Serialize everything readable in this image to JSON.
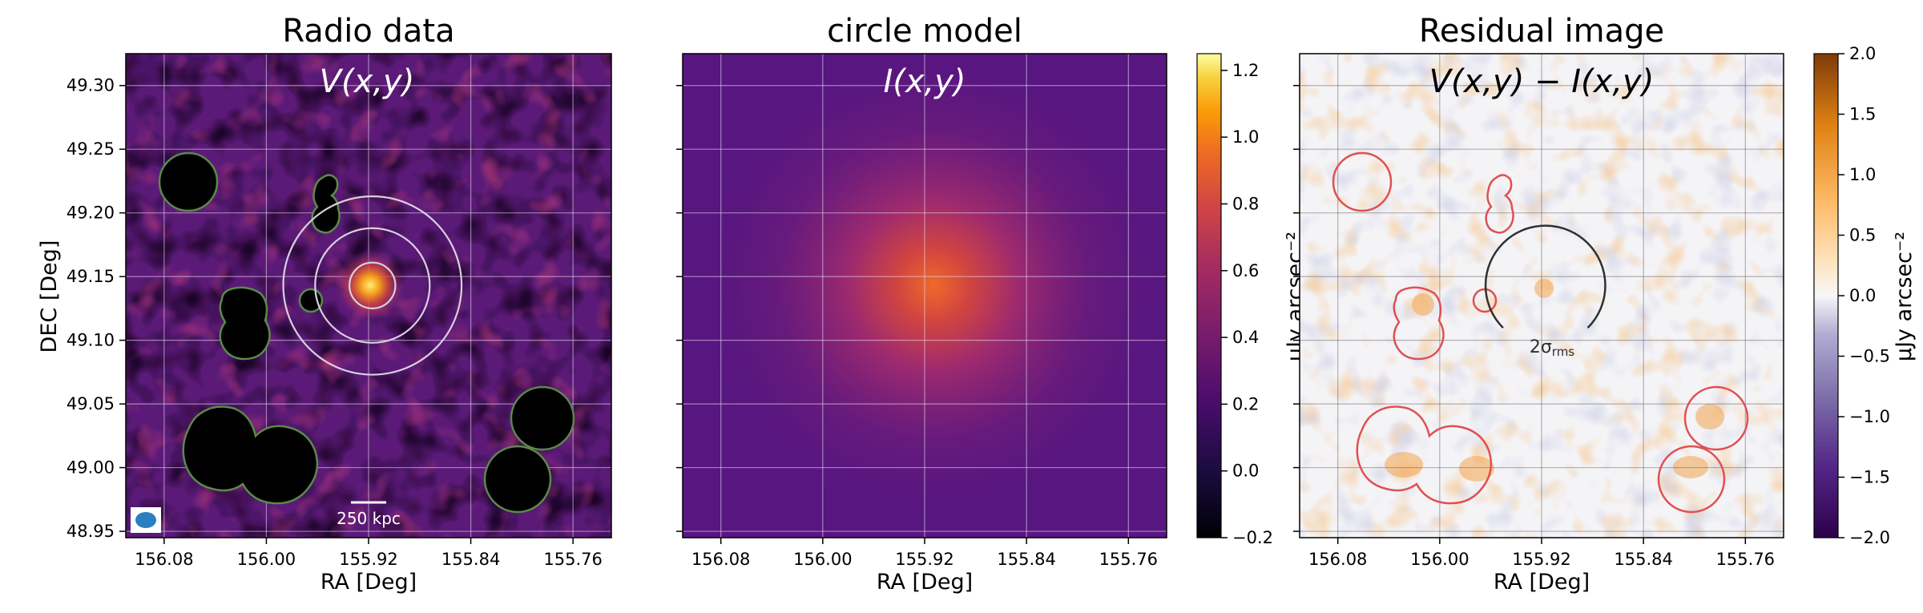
{
  "figure": {
    "panels": [
      {
        "title": "Radio data",
        "formula": "V(x,y)",
        "xlabel": "RA [Deg]",
        "ylabel": "DEC [Deg]"
      },
      {
        "title": "circle model",
        "formula": "I(x,y)",
        "xlabel": "RA [Deg]"
      },
      {
        "title": "Residual image",
        "formula": "V(x,y) − I(x,y)",
        "xlabel": "RA [Deg]"
      }
    ],
    "scalebar_label": "250 kpc",
    "sigma_label": "2σ",
    "sigma_subscript": "rms",
    "colorbar_label_model": "μJy arcsec⁻²",
    "colorbar_label_residual": "μJy arcsec⁻²",
    "colors": {
      "mask_outline_radio": "#5a8a4a",
      "mask_outline_residual": "#e05050",
      "rings": "#d8d0e0",
      "beam": "#2a7fc0",
      "sigma_circle": "#303030"
    }
  },
  "chart_data": [
    {
      "type": "heatmap",
      "name_hint": "radio",
      "xlim": [
        156.11,
        155.73
      ],
      "ylim": [
        48.945,
        49.325
      ],
      "x_ticks": [
        "156.08",
        "156.00",
        "155.92",
        "155.84",
        "155.76"
      ],
      "x_tick_values": [
        156.08,
        156.0,
        155.92,
        155.84,
        155.76
      ],
      "y_ticks": [
        "49.30",
        "49.25",
        "49.20",
        "49.15",
        "49.10",
        "49.05",
        "49.00",
        "48.95"
      ],
      "y_tick_values": [
        49.3,
        49.25,
        49.2,
        49.15,
        49.1,
        49.05,
        49.0,
        48.95
      ],
      "center": {
        "ra": 155.917,
        "dec": 49.143
      },
      "ring_radii_deg": [
        0.018,
        0.045,
        0.07
      ],
      "grid": true
    },
    {
      "type": "heatmap",
      "name_hint": "model",
      "xlim": [
        156.11,
        155.73
      ],
      "ylim": [
        48.945,
        49.325
      ],
      "x_ticks": [
        "156.08",
        "156.00",
        "155.92",
        "155.84",
        "155.76"
      ],
      "x_tick_values": [
        156.08,
        156.0,
        155.92,
        155.84,
        155.76
      ],
      "center": {
        "ra": 155.917,
        "dec": 49.143
      },
      "colorbar": {
        "min": -0.2,
        "max": 1.25,
        "ticks": [
          "1.2",
          "1.0",
          "0.8",
          "0.6",
          "0.4",
          "0.2",
          "0.0",
          "−0.2"
        ],
        "tick_values": [
          1.2,
          1.0,
          0.8,
          0.6,
          0.4,
          0.2,
          0.0,
          -0.2
        ],
        "colormap": "inferno"
      },
      "grid": true
    },
    {
      "type": "heatmap",
      "name_hint": "residual",
      "xlim": [
        156.11,
        155.73
      ],
      "ylim": [
        48.945,
        49.325
      ],
      "x_ticks": [
        "156.08",
        "156.00",
        "155.92",
        "155.84",
        "155.76"
      ],
      "x_tick_values": [
        156.08,
        156.0,
        155.92,
        155.84,
        155.76
      ],
      "center": {
        "ra": 155.917,
        "dec": 49.143
      },
      "sigma_radius_deg": 0.047,
      "colorbar": {
        "min": -2.0,
        "max": 2.0,
        "ticks": [
          "2.0",
          "1.5",
          "1.0",
          "0.5",
          "0.0",
          "−0.5",
          "−1.0",
          "−1.5",
          "−2.0"
        ],
        "tick_values": [
          2.0,
          1.5,
          1.0,
          0.5,
          0.0,
          -0.5,
          -1.0,
          -1.5,
          -2.0
        ],
        "colormap": "PuOr_r"
      },
      "grid": true
    }
  ]
}
